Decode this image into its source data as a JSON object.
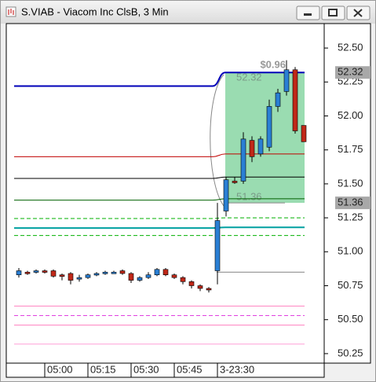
{
  "chart_data": {
    "type": "candlestick",
    "title": "S.VIAB - Viacom Inc ClsB, 3 Min",
    "categories": [
      null,
      null,
      null,
      "05:00",
      null,
      null,
      null,
      null,
      "05:15",
      null,
      null,
      null,
      null,
      "05:30",
      null,
      null,
      null,
      null,
      "05:45",
      null,
      null,
      null,
      null,
      "3-23:30",
      null,
      null,
      null,
      null,
      null,
      null,
      null,
      null,
      null,
      null
    ],
    "open": [
      50.83,
      50.85,
      50.85,
      50.86,
      50.86,
      50.83,
      50.84,
      50.8,
      50.81,
      50.83,
      50.84,
      50.85,
      50.86,
      50.84,
      50.79,
      50.81,
      50.83,
      50.87,
      50.83,
      50.81,
      50.78,
      50.75,
      50.73,
      50.86,
      51.3,
      51.52,
      51.52,
      51.82,
      51.72,
      51.77,
      52.07,
      52.18,
      52.34,
      51.93
    ],
    "high": [
      50.88,
      50.86,
      50.87,
      50.87,
      50.87,
      50.84,
      50.85,
      50.83,
      50.84,
      50.85,
      50.86,
      50.86,
      50.87,
      50.85,
      50.82,
      50.85,
      50.88,
      50.88,
      50.84,
      50.82,
      50.79,
      50.76,
      50.74,
      51.36,
      51.55,
      51.55,
      51.88,
      51.85,
      51.85,
      52.12,
      52.2,
      52.41,
      52.36,
      51.93
    ],
    "low": [
      50.81,
      50.83,
      50.84,
      50.84,
      50.81,
      50.79,
      50.76,
      50.78,
      50.8,
      50.82,
      50.83,
      50.84,
      50.83,
      50.77,
      50.78,
      50.8,
      50.82,
      50.82,
      50.8,
      50.76,
      50.73,
      50.71,
      50.7,
      50.76,
      51.26,
      51.5,
      51.5,
      51.66,
      51.7,
      51.74,
      52.03,
      52.15,
      51.87,
      51.81
    ],
    "close": [
      50.86,
      50.84,
      50.86,
      50.85,
      50.82,
      50.82,
      50.79,
      50.81,
      50.83,
      50.84,
      50.85,
      50.85,
      50.84,
      50.79,
      50.81,
      50.83,
      50.87,
      50.83,
      50.81,
      50.78,
      50.75,
      50.73,
      50.72,
      51.23,
      51.53,
      51.51,
      51.83,
      51.7,
      51.83,
      52.07,
      52.17,
      52.34,
      51.89,
      51.81
    ],
    "up_color": "#2a7fd4",
    "down_color": "#c02818",
    "levels": [
      {
        "color": "#0000b8",
        "values": [
          52.22,
          52.32
        ],
        "dashed": false
      },
      {
        "color": "#c00000",
        "values": [
          51.7,
          51.72
        ],
        "dashed": false
      },
      {
        "color": "#000000",
        "values": [
          51.54,
          51.55
        ],
        "dashed": false
      },
      {
        "color": "#006000",
        "values": [
          51.38,
          51.39
        ],
        "dashed": false
      },
      {
        "color": "#00b000",
        "values": [
          51.245,
          51.25
        ],
        "dashed": true
      },
      {
        "color": "#00a0a0",
        "values": [
          51.175,
          51.18
        ],
        "dashed": false
      },
      {
        "color": "#00b000",
        "values": [
          51.12,
          51.12
        ],
        "dashed": true
      },
      {
        "color": "#808080",
        "values": [
          null,
          50.85
        ],
        "dashed": false
      },
      {
        "color": "#ff80c0",
        "values": [
          50.6,
          50.6
        ],
        "dashed": false
      },
      {
        "color": "#e040e0",
        "values": [
          50.53,
          50.53
        ],
        "dashed": true
      },
      {
        "color": "#ff80c0",
        "values": [
          50.46,
          50.46
        ],
        "dashed": false
      },
      {
        "color": "#ffa0d8",
        "values": [
          50.32,
          50.32
        ],
        "dashed": false
      }
    ],
    "range": {
      "values": [
        51.36,
        52.32
      ],
      "change_label": "$0.96",
      "color": "#8fd8a8"
    },
    "price_tags": [
      52.32,
      51.36
    ],
    "ylim": [
      50.18,
      52.68
    ],
    "yticks": [
      {
        "value": 52.5,
        "label": "52.50"
      },
      52.25,
      {
        "value": 52,
        "label": "52.00"
      },
      51.75,
      {
        "value": 51.5,
        "label": "51.50"
      },
      51.25,
      {
        "value": 51,
        "label": "51.00"
      },
      50.75,
      {
        "value": 50.5,
        "label": "50.50"
      },
      50.25
    ]
  }
}
